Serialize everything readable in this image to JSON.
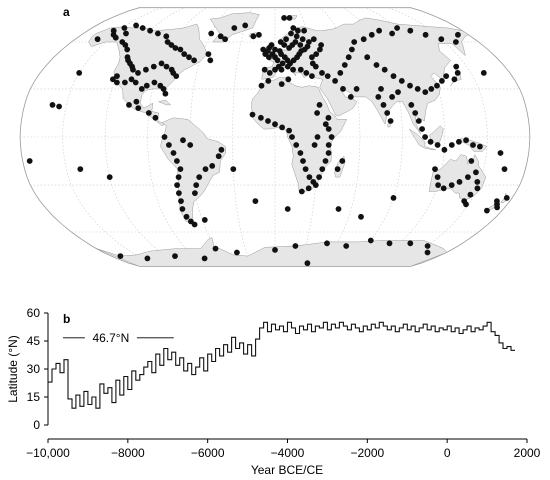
{
  "figure": {
    "panel_a_label": "a",
    "panel_b_label": "b"
  },
  "colors": {
    "ocean": "#ffffff",
    "land": "#e6e6e6",
    "coast": "#9a9a9a",
    "graticule": "#c8c8c8",
    "site": "#111111",
    "line": "#111111"
  },
  "chart_data": [
    {
      "type": "scatter",
      "panel": "a",
      "projection": "Robinson world map",
      "marker": "site-dot",
      "points": [
        [
          -160,
          62
        ],
        [
          -155,
          68
        ],
        [
          -150,
          65
        ],
        [
          -148,
          70
        ],
        [
          -145,
          63
        ],
        [
          -140,
          66
        ],
        [
          -135,
          60
        ],
        [
          -130,
          58
        ],
        [
          -125,
          55
        ],
        [
          -140,
          72
        ],
        [
          -130,
          70
        ],
        [
          -120,
          68
        ],
        [
          -110,
          66
        ],
        [
          -100,
          64
        ],
        [
          -95,
          60
        ],
        [
          -90,
          58
        ],
        [
          -85,
          56
        ],
        [
          -80,
          55
        ],
        [
          -75,
          52
        ],
        [
          -70,
          50
        ],
        [
          -65,
          48
        ],
        [
          -120,
          50
        ],
        [
          -118,
          48
        ],
        [
          -115,
          46
        ],
        [
          -112,
          44
        ],
        [
          -110,
          42
        ],
        [
          -105,
          40
        ],
        [
          -100,
          42
        ],
        [
          -95,
          44
        ],
        [
          -90,
          46
        ],
        [
          -85,
          44
        ],
        [
          -80,
          42
        ],
        [
          -78,
          40
        ],
        [
          -75,
          38
        ],
        [
          -120,
          38
        ],
        [
          -122,
          36
        ],
        [
          -118,
          34
        ],
        [
          -112,
          34
        ],
        [
          -108,
          36
        ],
        [
          -104,
          34
        ],
        [
          -98,
          30
        ],
        [
          -95,
          32
        ],
        [
          -90,
          34
        ],
        [
          -85,
          32
        ],
        [
          -82,
          30
        ],
        [
          -80,
          27
        ],
        [
          -100,
          22
        ],
        [
          -105,
          20
        ],
        [
          -98,
          18
        ],
        [
          -90,
          15
        ],
        [
          -85,
          12
        ],
        [
          -60,
          66
        ],
        [
          -50,
          64
        ],
        [
          -45,
          62
        ],
        [
          -40,
          70
        ],
        [
          -30,
          72
        ],
        [
          -55,
          52
        ],
        [
          -52,
          48
        ],
        [
          -78,
          0
        ],
        [
          -75,
          -5
        ],
        [
          -72,
          -10
        ],
        [
          -70,
          -15
        ],
        [
          -68,
          -20
        ],
        [
          -70,
          -25
        ],
        [
          -72,
          -30
        ],
        [
          -72,
          -35
        ],
        [
          -72,
          -40
        ],
        [
          -73,
          -45
        ],
        [
          -72,
          -50
        ],
        [
          -70,
          -53
        ],
        [
          -68,
          -55
        ],
        [
          -60,
          -35
        ],
        [
          -58,
          -30
        ],
        [
          -55,
          -25
        ],
        [
          -50,
          -20
        ],
        [
          -45,
          -18
        ],
        [
          -40,
          -12
        ],
        [
          -38,
          -8
        ],
        [
          -60,
          -5
        ],
        [
          -65,
          -2
        ],
        [
          -58,
          -52
        ],
        [
          -10,
          55
        ],
        [
          -8,
          52
        ],
        [
          -5,
          50
        ],
        [
          -2,
          52
        ],
        [
          0,
          50
        ],
        [
          2,
          48
        ],
        [
          5,
          52
        ],
        [
          8,
          50
        ],
        [
          10,
          48
        ],
        [
          12,
          46
        ],
        [
          15,
          48
        ],
        [
          18,
          50
        ],
        [
          20,
          52
        ],
        [
          22,
          54
        ],
        [
          25,
          55
        ],
        [
          28,
          57
        ],
        [
          30,
          60
        ],
        [
          25,
          62
        ],
        [
          20,
          64
        ],
        [
          15,
          66
        ],
        [
          10,
          62
        ],
        [
          5,
          60
        ],
        [
          8,
          58
        ],
        [
          12,
          56
        ],
        [
          15,
          58
        ],
        [
          18,
          60
        ],
        [
          22,
          58
        ],
        [
          -5,
          56
        ],
        [
          -3,
          58
        ],
        [
          -6,
          54
        ],
        [
          0,
          55
        ],
        [
          4,
          54
        ],
        [
          6,
          46
        ],
        [
          3,
          44
        ],
        [
          0,
          42
        ],
        [
          -4,
          40
        ],
        [
          -8,
          42
        ],
        [
          5,
          42
        ],
        [
          10,
          44
        ],
        [
          14,
          42
        ],
        [
          20,
          42
        ],
        [
          24,
          40
        ],
        [
          28,
          38
        ],
        [
          30,
          50
        ],
        [
          34,
          52
        ],
        [
          38,
          55
        ],
        [
          40,
          58
        ],
        [
          35,
          62
        ],
        [
          28,
          68
        ],
        [
          22,
          68
        ],
        [
          18,
          70
        ],
        [
          -20,
          64
        ],
        [
          -15,
          65
        ],
        [
          10,
          78
        ],
        [
          16,
          78
        ],
        [
          30,
          46
        ],
        [
          32,
          44
        ],
        [
          36,
          40
        ],
        [
          -16,
          14
        ],
        [
          -10,
          12
        ],
        [
          -5,
          10
        ],
        [
          0,
          8
        ],
        [
          5,
          6
        ],
        [
          10,
          4
        ],
        [
          12,
          0
        ],
        [
          15,
          -5
        ],
        [
          18,
          -10
        ],
        [
          20,
          -15
        ],
        [
          22,
          -20
        ],
        [
          25,
          -25
        ],
        [
          28,
          -28
        ],
        [
          30,
          -30
        ],
        [
          25,
          -32
        ],
        [
          20,
          -34
        ],
        [
          32,
          -25
        ],
        [
          34,
          -20
        ],
        [
          36,
          -15
        ],
        [
          38,
          -10
        ],
        [
          38,
          -5
        ],
        [
          40,
          0
        ],
        [
          38,
          5
        ],
        [
          36,
          8
        ],
        [
          38,
          12
        ],
        [
          30,
          15
        ],
        [
          32,
          20
        ],
        [
          30,
          0
        ],
        [
          28,
          -5
        ],
        [
          45,
          -20
        ],
        [
          48,
          -15
        ],
        [
          5,
          33
        ],
        [
          10,
          36
        ],
        [
          -5,
          35
        ],
        [
          -10,
          32
        ],
        [
          50,
          40
        ],
        [
          55,
          45
        ],
        [
          60,
          50
        ],
        [
          65,
          55
        ],
        [
          70,
          60
        ],
        [
          80,
          62
        ],
        [
          90,
          65
        ],
        [
          100,
          68
        ],
        [
          110,
          66
        ],
        [
          120,
          70
        ],
        [
          130,
          68
        ],
        [
          140,
          65
        ],
        [
          150,
          62
        ],
        [
          160,
          60
        ],
        [
          170,
          65
        ],
        [
          75,
          50
        ],
        [
          80,
          45
        ],
        [
          85,
          42
        ],
        [
          90,
          38
        ],
        [
          95,
          35
        ],
        [
          100,
          32
        ],
        [
          105,
          30
        ],
        [
          110,
          28
        ],
        [
          115,
          30
        ],
        [
          120,
          32
        ],
        [
          125,
          35
        ],
        [
          130,
          38
        ],
        [
          135,
          36
        ],
        [
          140,
          40
        ],
        [
          142,
          44
        ],
        [
          78,
          30
        ],
        [
          75,
          25
        ],
        [
          78,
          20
        ],
        [
          80,
          15
        ],
        [
          82,
          10
        ],
        [
          85,
          25
        ],
        [
          90,
          28
        ],
        [
          98,
          20
        ],
        [
          100,
          15
        ],
        [
          102,
          10
        ],
        [
          104,
          5
        ],
        [
          106,
          0
        ],
        [
          110,
          -3
        ],
        [
          115,
          -5
        ],
        [
          120,
          -8
        ],
        [
          125,
          -5
        ],
        [
          130,
          -3
        ],
        [
          135,
          -2
        ],
        [
          140,
          -5
        ],
        [
          145,
          -6
        ],
        [
          60,
          30
        ],
        [
          55,
          25
        ],
        [
          50,
          30
        ],
        [
          45,
          35
        ],
        [
          40,
          38
        ],
        [
          115,
          -20
        ],
        [
          118,
          -25
        ],
        [
          120,
          -30
        ],
        [
          125,
          -32
        ],
        [
          130,
          -30
        ],
        [
          135,
          -28
        ],
        [
          140,
          -25
        ],
        [
          145,
          -22
        ],
        [
          148,
          -28
        ],
        [
          150,
          -32
        ],
        [
          147,
          -36
        ],
        [
          145,
          -40
        ],
        [
          148,
          -42
        ],
        [
          170,
          -40
        ],
        [
          172,
          -42
        ],
        [
          174,
          -44
        ],
        [
          176,
          -38
        ],
        [
          168,
          -46
        ],
        [
          160,
          -10
        ],
        [
          165,
          -20
        ],
        [
          -160,
          20
        ],
        [
          -155,
          19
        ],
        [
          -140,
          -20
        ],
        [
          -120,
          -25
        ],
        [
          -30,
          -20
        ],
        [
          -15,
          -40
        ],
        [
          10,
          -45
        ],
        [
          50,
          -45
        ],
        [
          70,
          -50
        ],
        [
          90,
          -38
        ],
        [
          140,
          -15
        ],
        [
          160,
          40
        ],
        [
          -175,
          -15
        ],
        [
          -150,
          40
        ],
        [
          -170,
          -78
        ],
        [
          -145,
          -80
        ],
        [
          -110,
          -78
        ],
        [
          -80,
          -80
        ],
        [
          -60,
          -72
        ],
        [
          -40,
          -75
        ],
        [
          0,
          -73
        ],
        [
          20,
          -70
        ],
        [
          50,
          -68
        ],
        [
          70,
          -70
        ],
        [
          90,
          -66
        ],
        [
          110,
          -68
        ],
        [
          130,
          -68
        ],
        [
          150,
          -70
        ],
        [
          160,
          -75
        ],
        [
          40,
          -85
        ]
      ]
    },
    {
      "type": "line",
      "panel": "b",
      "step": true,
      "xlabel": "Year BCE/CE",
      "ylabel": "Latitude (°N)",
      "xlim": [
        -10000,
        2000
      ],
      "ylim": [
        0,
        60
      ],
      "x_ticks": [
        -10000,
        -8000,
        -6000,
        -4000,
        -2000,
        0,
        2000
      ],
      "x_tick_labels": [
        "−10,000",
        "−8000",
        "−6000",
        "−4000",
        "−2000",
        "0",
        "2000"
      ],
      "y_ticks": [
        0,
        15,
        30,
        45,
        60
      ],
      "y_tick_labels": [
        "0",
        "15",
        "30",
        "45",
        "60"
      ],
      "annotation": {
        "text": "46.7°N",
        "value": 46.7,
        "x_start": -10000,
        "x_end": -6850
      },
      "series": [
        {
          "x_start": -10000,
          "x_step": 100,
          "values": [
            23,
            30,
            33,
            28,
            35,
            14,
            9,
            16,
            10,
            18,
            11,
            15,
            9,
            22,
            17,
            20,
            12,
            24,
            16,
            26,
            19,
            29,
            24,
            27,
            31,
            34,
            28,
            38,
            32,
            41,
            35,
            39,
            32,
            36,
            29,
            33,
            27,
            31,
            36,
            29,
            38,
            34,
            41,
            37,
            43,
            39,
            47,
            41,
            44,
            38,
            43,
            37,
            46,
            52,
            55,
            50,
            54,
            51,
            53,
            50,
            55,
            52,
            49,
            53,
            51,
            54,
            50,
            53,
            52,
            55,
            51,
            54,
            52,
            55,
            53,
            51,
            54,
            52,
            50,
            53,
            51,
            54,
            52,
            55,
            53,
            51,
            53,
            50,
            52,
            54,
            51,
            53,
            50,
            52,
            54,
            51,
            53,
            50,
            52,
            51,
            53,
            50,
            52,
            49,
            51,
            53,
            50,
            52,
            51,
            53,
            55,
            50,
            48,
            44,
            41,
            42,
            40
          ]
        }
      ]
    }
  ]
}
